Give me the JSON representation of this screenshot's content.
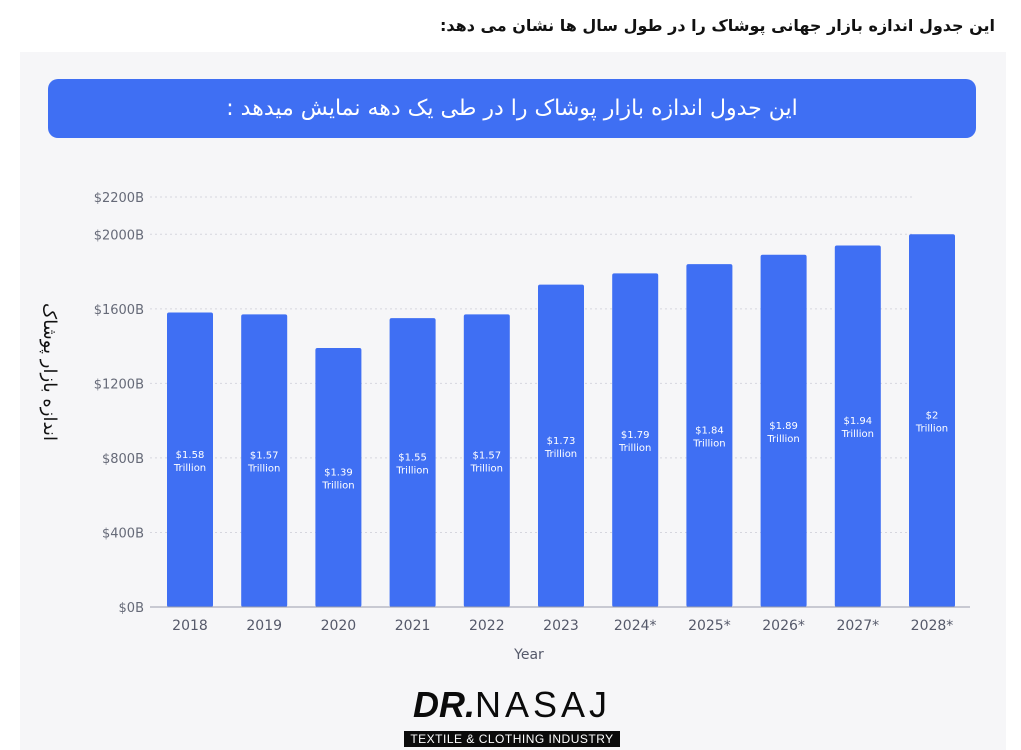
{
  "page": {
    "caption": "این جدول اندازه بازار جهانی پوشاک را در طول سال ها نشان می دهد:",
    "banner_title": "این جدول اندازه بازار پوشاک را در طی یک دهه نمایش میدهد :"
  },
  "logo": {
    "brand_bold": "DR.",
    "brand_rest": "NASAJ",
    "tagline": "TEXTILE & CLOTHING INDUSTRY"
  },
  "colors": {
    "bar": "#3f6ff3",
    "banner": "#3f6ff3",
    "axis_text": "#666a78",
    "grid": "#d6d6de"
  },
  "chart_data": {
    "type": "bar",
    "title": "",
    "xlabel": "Year",
    "ylabel": "اندازه بازار پوشاک",
    "categories": [
      "2018",
      "2019",
      "2020",
      "2021",
      "2022",
      "2023",
      "2024*",
      "2025*",
      "2026*",
      "2027*",
      "2028*"
    ],
    "values": [
      1580,
      1570,
      1390,
      1550,
      1570,
      1730,
      1790,
      1840,
      1890,
      1940,
      2000
    ],
    "data_labels": [
      [
        "$1.58",
        "Trillion"
      ],
      [
        "$1.57",
        "Trillion"
      ],
      [
        "$1.39",
        "Trillion"
      ],
      [
        "$1.55",
        "Trillion"
      ],
      [
        "$1.57",
        "Trillion"
      ],
      [
        "$1.73",
        "Trillion"
      ],
      [
        "$1.79",
        "Trillion"
      ],
      [
        "$1.84",
        "Trillion"
      ],
      [
        "$1.89",
        "Trillion"
      ],
      [
        "$1.94",
        "Trillion"
      ],
      [
        "$2",
        "Trillion"
      ]
    ],
    "yticks": [
      0,
      400,
      800,
      1200,
      1600,
      2000,
      2200
    ],
    "ytick_labels": [
      "$0B",
      "$400B",
      "$800B",
      "$1200B",
      "$1600B",
      "$2000B",
      "$2200B"
    ],
    "ylim": [
      0,
      2200
    ],
    "grid": true,
    "legend": false
  }
}
